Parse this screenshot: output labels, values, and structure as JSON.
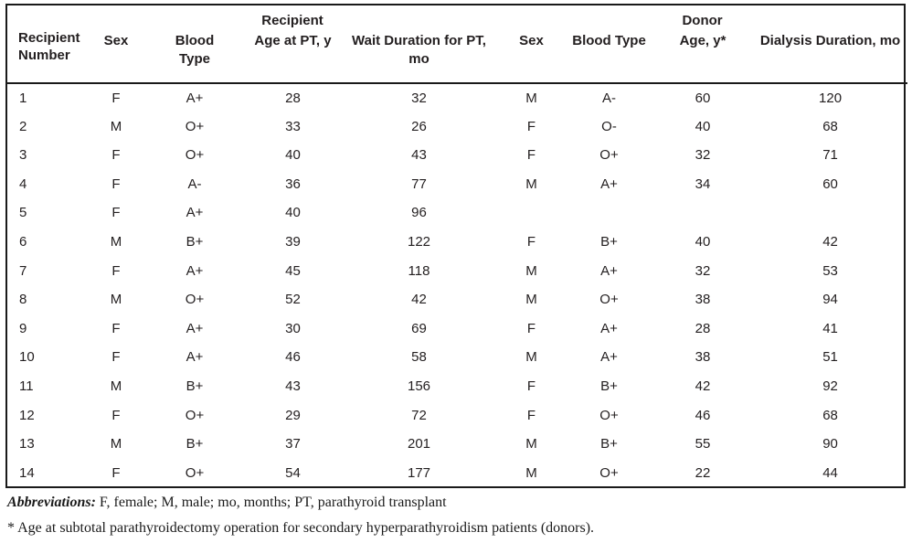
{
  "table": {
    "group_headers": [
      {
        "label": "Recipient"
      },
      {
        "label": "Donor"
      }
    ],
    "corner_header": "Recipient Number",
    "columns": [
      "Sex",
      "Blood Type",
      "Age at PT, y",
      "Wait Duration for PT, mo",
      "Sex",
      "Blood Type",
      "Age, y*",
      "Dialysis Duration, mo"
    ],
    "rows": [
      [
        "1",
        "F",
        "A+",
        "28",
        "32",
        "M",
        "A-",
        "60",
        "120"
      ],
      [
        "2",
        "M",
        "O+",
        "33",
        "26",
        "F",
        "O-",
        "40",
        "68"
      ],
      [
        "3",
        "F",
        "O+",
        "40",
        "43",
        "F",
        "O+",
        "32",
        "71"
      ],
      [
        "4",
        "F",
        "A-",
        "36",
        "77",
        "M",
        "A+",
        "34",
        "60"
      ],
      [
        "5",
        "F",
        "A+",
        "40",
        "96",
        "",
        "",
        "",
        ""
      ],
      [
        "6",
        "M",
        "B+",
        "39",
        "122",
        "F",
        "B+",
        "40",
        "42"
      ],
      [
        "7",
        "F",
        "A+",
        "45",
        "118",
        "M",
        "A+",
        "32",
        "53"
      ],
      [
        "8",
        "M",
        "O+",
        "52",
        "42",
        "M",
        "O+",
        "38",
        "94"
      ],
      [
        "9",
        "F",
        "A+",
        "30",
        "69",
        "F",
        "A+",
        "28",
        "41"
      ],
      [
        "10",
        "F",
        "A+",
        "46",
        "58",
        "M",
        "A+",
        "38",
        "51"
      ],
      [
        "11",
        "M",
        "B+",
        "43",
        "156",
        "F",
        "B+",
        "42",
        "92"
      ],
      [
        "12",
        "F",
        "O+",
        "29",
        "72",
        "F",
        "O+",
        "46",
        "68"
      ],
      [
        "13",
        "M",
        "B+",
        "37",
        "201",
        "M",
        "B+",
        "55",
        "90"
      ],
      [
        "14",
        "F",
        "O+",
        "54",
        "177",
        "M",
        "O+",
        "22",
        "44"
      ]
    ]
  },
  "footnotes": {
    "abbreviations_label": "Abbreviations:",
    "abbreviations_text": " F, female; M, male; mo, months; PT, parathyroid transplant",
    "age_note": "* Age at subtotal parathyroidectomy operation for secondary hyperparathyroidism patients (donors)."
  },
  "colors": {
    "text": "#231f20",
    "border": "#1a1a1a",
    "background": "#ffffff"
  }
}
